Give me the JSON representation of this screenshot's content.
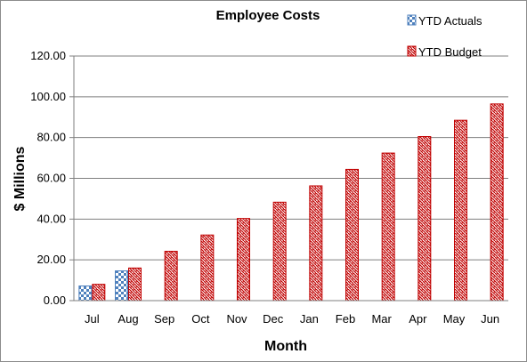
{
  "chart_data": {
    "type": "bar",
    "title": "Employee Costs",
    "xlabel": "Month",
    "ylabel": "$ Millions",
    "categories": [
      "Jul",
      "Aug",
      "Sep",
      "Oct",
      "Nov",
      "Dec",
      "Jan",
      "Feb",
      "Mar",
      "Apr",
      "May",
      "Jun"
    ],
    "series": [
      {
        "name": "YTD Actuals",
        "color": "#4f81bd",
        "pattern": "checker",
        "values": [
          7.2,
          14.6,
          null,
          null,
          null,
          null,
          null,
          null,
          null,
          null,
          null,
          null
        ]
      },
      {
        "name": "YTD Budget",
        "color": "#c00000",
        "pattern": "weave",
        "values": [
          8.0,
          16.0,
          24.2,
          32.2,
          40.3,
          48.3,
          56.3,
          64.4,
          72.4,
          80.5,
          88.5,
          96.5
        ]
      }
    ],
    "ylim": [
      0,
      120
    ],
    "yticks": [
      0,
      20,
      40,
      60,
      80,
      100,
      120
    ],
    "ytick_format_decimals": 2,
    "grid": true,
    "legend_position": "top-right"
  }
}
